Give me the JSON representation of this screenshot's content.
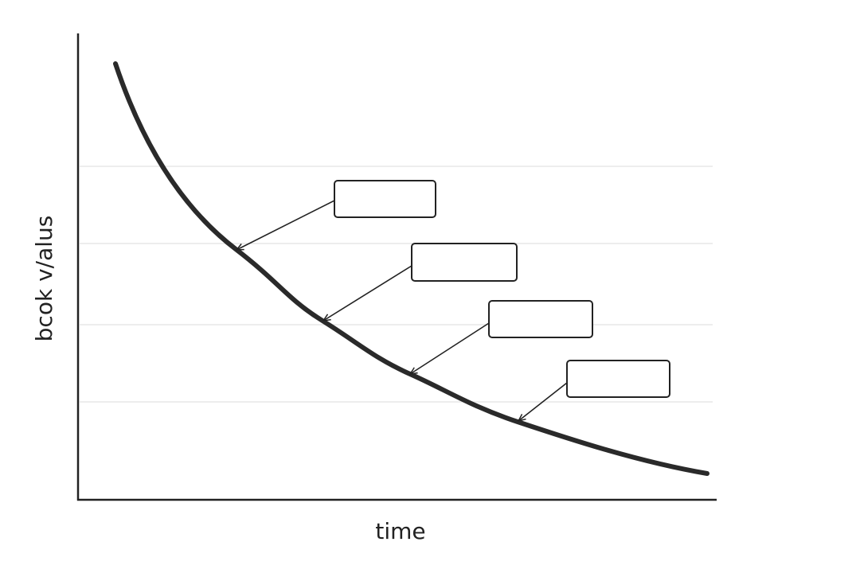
{
  "axes": {
    "y_label": "bcok v/alus",
    "x_label": "time"
  }
}
